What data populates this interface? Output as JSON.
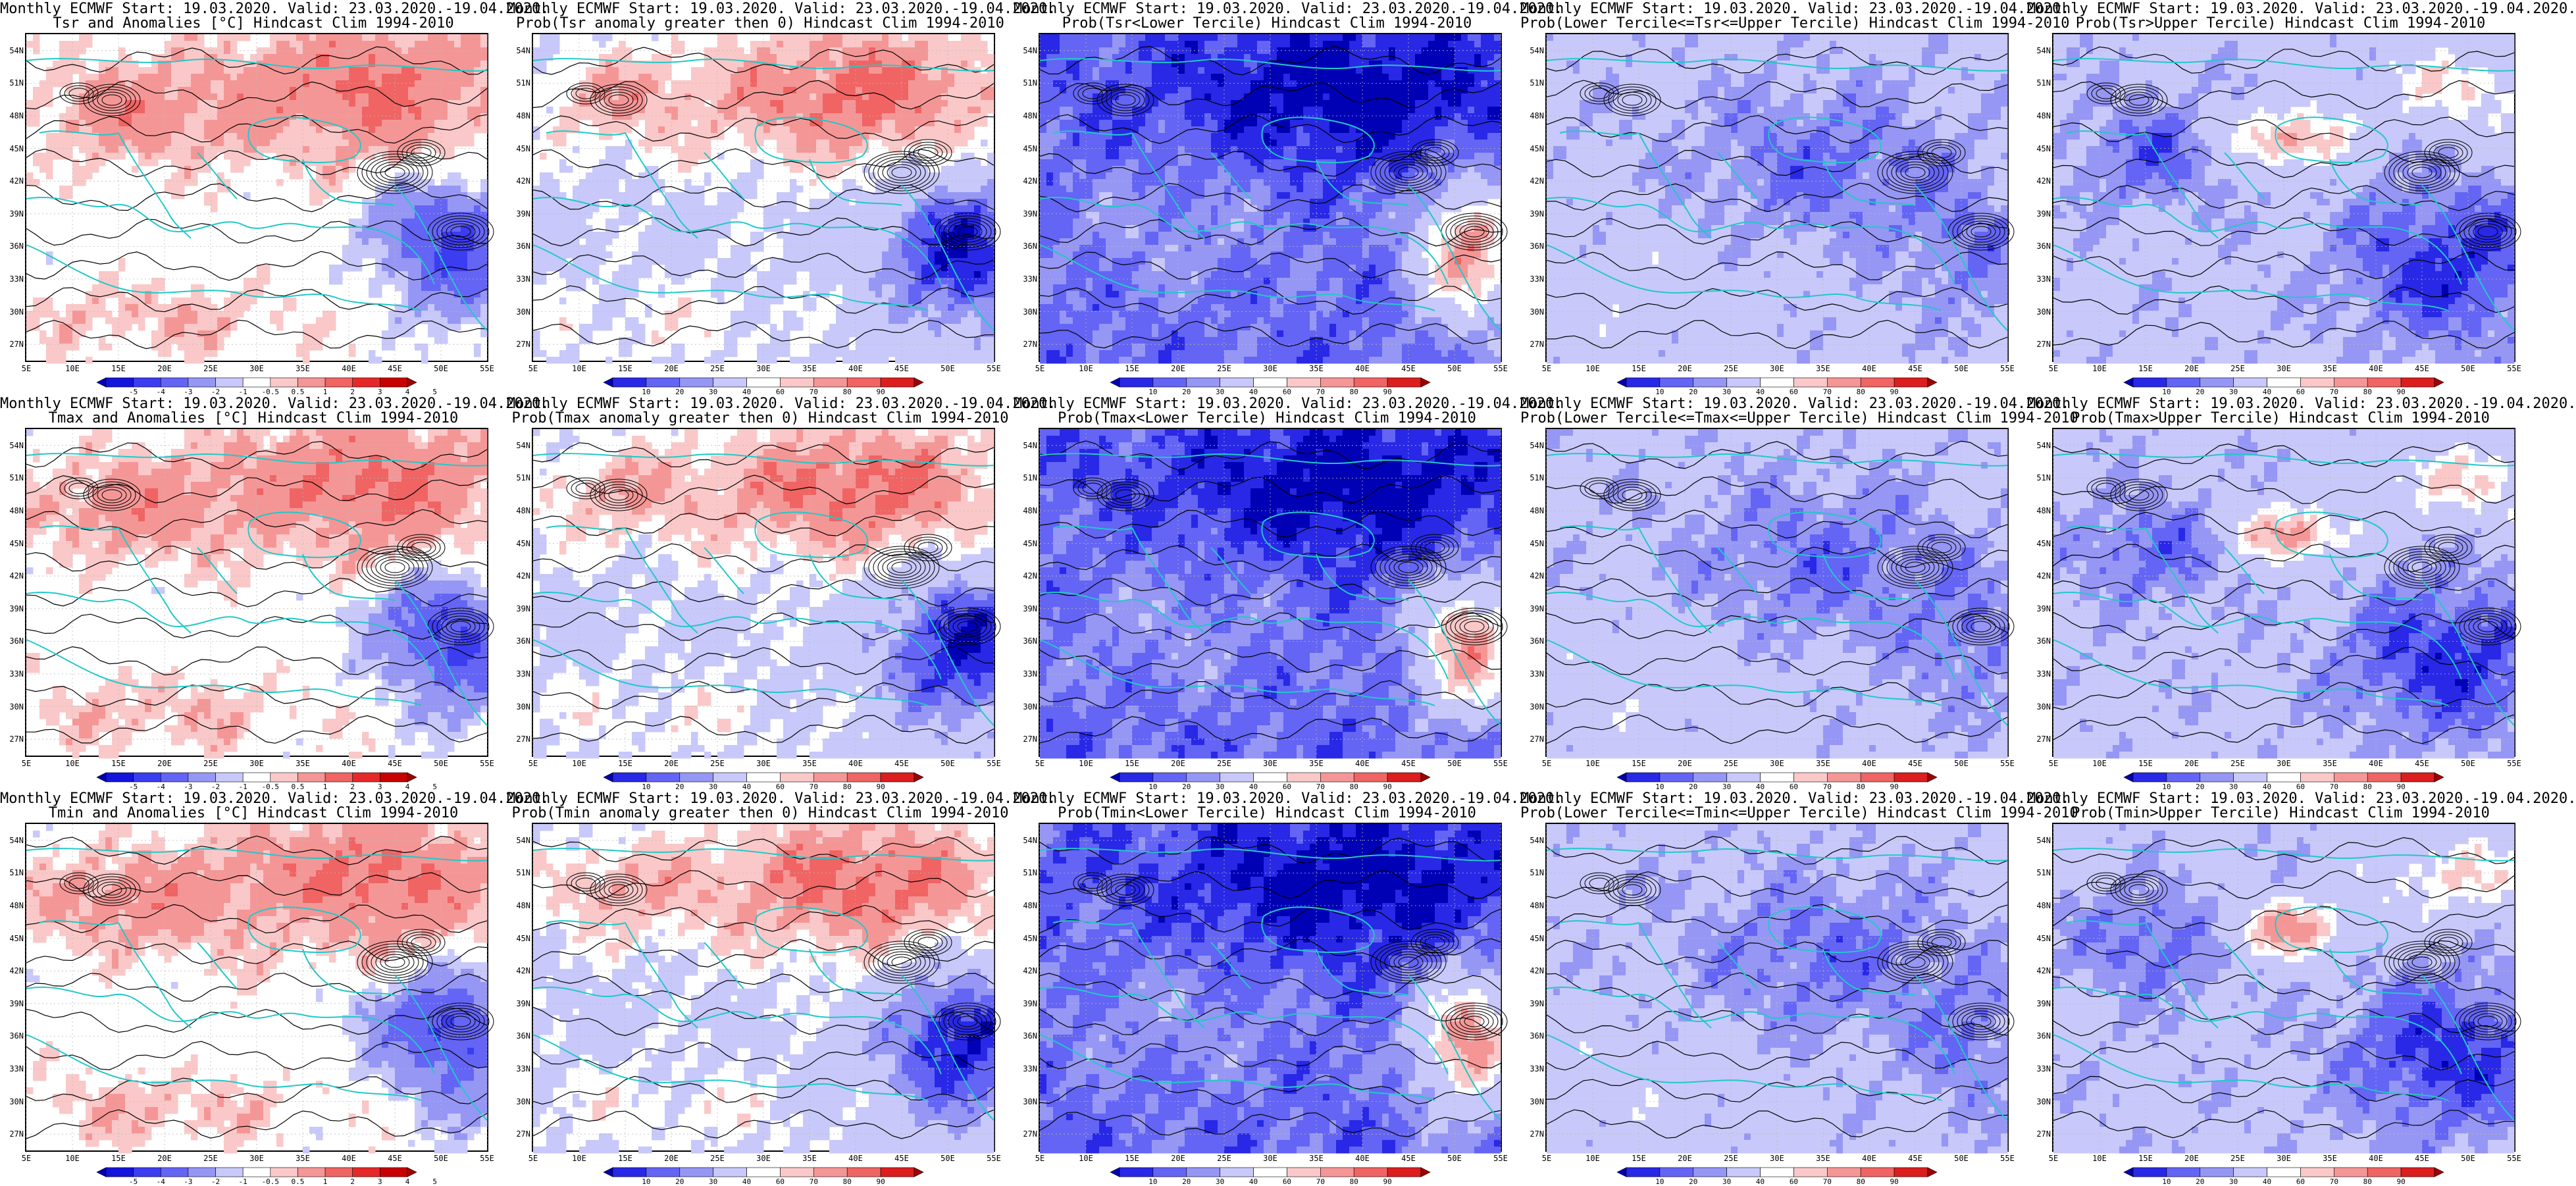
{
  "rows": [
    {
      "variable": "Tsr",
      "panels": [
        {
          "line1": "Monthly ECMWF Start: 19.03.2020. Valid: 23.03.2020.-19.04.2020.",
          "line2": "Tsr and Anomalies [°C] Hindcast Clim 1994-2010",
          "kind": "anom",
          "pattern": "anom"
        },
        {
          "line1": "Monthly ECMWF Start: 19.03.2020. Valid: 23.03.2020.-19.04.2020.",
          "line2": "Prob(Tsr anomaly greater then 0) Hindcast Clim 1994-2010",
          "kind": "prob",
          "pattern": "pos"
        },
        {
          "line1": "Monthly ECMWF Start: 19.03.2020. Valid: 23.03.2020.-19.04.2020.",
          "line2": "Prob(Tsr<Lower Tercile) Hindcast Clim 1994-2010",
          "kind": "prob",
          "pattern": "lower"
        },
        {
          "line1": "Monthly ECMWF Start: 19.03.2020. Valid: 23.03.2020.-19.04.2020.",
          "line2": "Prob(Lower Tercile<=Tsr<=Upper Tercile) Hindcast Clim 1994-2010",
          "kind": "prob",
          "pattern": "middle"
        },
        {
          "line1": "Monthly ECMWF Start: 19.03.2020. Valid: 23.03.2020.-19.04.2020.",
          "line2": "Prob(Tsr>Upper Tercile) Hindcast Clim 1994-2010",
          "kind": "prob",
          "pattern": "upper"
        }
      ]
    },
    {
      "variable": "Tmax",
      "panels": [
        {
          "line1": "Monthly ECMWF Start: 19.03.2020. Valid: 23.03.2020.-19.04.2020.",
          "line2": "Tmax and Anomalies [°C] Hindcast Clim 1994-2010",
          "kind": "anom",
          "pattern": "anom"
        },
        {
          "line1": "Monthly ECMWF Start: 19.03.2020. Valid: 23.03.2020.-19.04.2020.",
          "line2": "Prob(Tmax anomaly greater then 0) Hindcast Clim 1994-2010",
          "kind": "prob",
          "pattern": "pos"
        },
        {
          "line1": "Monthly ECMWF Start: 19.03.2020. Valid: 23.03.2020.-19.04.2020.",
          "line2": "Prob(Tmax<Lower Tercile) Hindcast Clim 1994-2010",
          "kind": "prob",
          "pattern": "lower"
        },
        {
          "line1": "Monthly ECMWF Start: 19.03.2020. Valid: 23.03.2020.-19.04.2020.",
          "line2": "Prob(Lower Tercile<=Tmax<=Upper Tercile) Hindcast Clim 1994-2010",
          "kind": "prob",
          "pattern": "middle"
        },
        {
          "line1": "Monthly ECMWF Start: 19.03.2020. Valid: 23.03.2020.-19.04.2020.",
          "line2": "Prob(Tmax>Upper Tercile) Hindcast Clim 1994-2010",
          "kind": "prob",
          "pattern": "upper"
        }
      ]
    },
    {
      "variable": "Tmin",
      "panels": [
        {
          "line1": "Monthly ECMWF Start: 19.03.2020. Valid: 23.03.2020.-19.04.2020.",
          "line2": "Tmin and Anomalies [°C] Hindcast Clim 1994-2010",
          "kind": "anom",
          "pattern": "anom"
        },
        {
          "line1": "Monthly ECMWF Start: 19.03.2020. Valid: 23.03.2020.-19.04.2020.",
          "line2": "Prob(Tmin anomaly greater then 0) Hindcast Clim 1994-2010",
          "kind": "prob",
          "pattern": "pos"
        },
        {
          "line1": "Monthly ECMWF Start: 19.03.2020. Valid: 23.03.2020.-19.04.2020.",
          "line2": "Prob(Tmin<Lower Tercile) Hindcast Clim 1994-2010",
          "kind": "prob",
          "pattern": "lower"
        },
        {
          "line1": "Monthly ECMWF Start: 19.03.2020. Valid: 23.03.2020.-19.04.2020.",
          "line2": "Prob(Lower Tercile<=Tmin<=Upper Tercile) Hindcast Clim 1994-2010",
          "kind": "prob",
          "pattern": "middle"
        },
        {
          "line1": "Monthly ECMWF Start: 19.03.2020. Valid: 23.03.2020.-19.04.2020.",
          "line2": "Prob(Tmin>Upper Tercile) Hindcast Clim 1994-2010",
          "kind": "prob",
          "pattern": "upper"
        }
      ]
    }
  ],
  "lat_labels": [
    "54N",
    "51N",
    "48N",
    "45N",
    "42N",
    "39N",
    "36N",
    "33N",
    "30N",
    "27N"
  ],
  "lat_values": [
    54,
    51,
    48,
    45,
    42,
    39,
    36,
    33,
    30,
    27
  ],
  "lat_range": [
    25.5,
    55.5
  ],
  "lon_labels": [
    "5E",
    "10E",
    "15E",
    "20E",
    "25E",
    "30E",
    "35E",
    "40E",
    "45E",
    "50E",
    "55E"
  ],
  "lon_values": [
    5,
    10,
    15,
    20,
    25,
    30,
    35,
    40,
    45,
    50,
    55
  ],
  "lon_range": [
    5,
    55
  ],
  "anomaly_colorbar": {
    "ticks": [
      "-5",
      "-4",
      "-3",
      "-2",
      "-1",
      "-0.5",
      "0.5",
      "1",
      "2",
      "3",
      "4",
      "5"
    ],
    "colors": [
      "#0000b4",
      "#1414dc",
      "#3c3cf0",
      "#6464f5",
      "#9696f5",
      "#c8c8fa",
      "#ffffff",
      "#fac8c8",
      "#f59696",
      "#f06464",
      "#e62828",
      "#c80000",
      "#a00000"
    ]
  },
  "probability_colorbar": {
    "ticks": [
      "10",
      "20",
      "30",
      "40",
      "60",
      "70",
      "80",
      "90"
    ],
    "colors": [
      "#0000b4",
      "#2828e6",
      "#6464f5",
      "#9696f5",
      "#c8c8fa",
      "#ffffff",
      "#fac8c8",
      "#f59696",
      "#f06464",
      "#dc1e1e",
      "#a00000"
    ]
  },
  "colors": {
    "coastline": "#22c8c8",
    "contour": "#000000",
    "grid": "#bbbbbb"
  },
  "icons": {
    "map": "filled-contour-map",
    "colorbar": "triangle-ended-colorbar"
  }
}
